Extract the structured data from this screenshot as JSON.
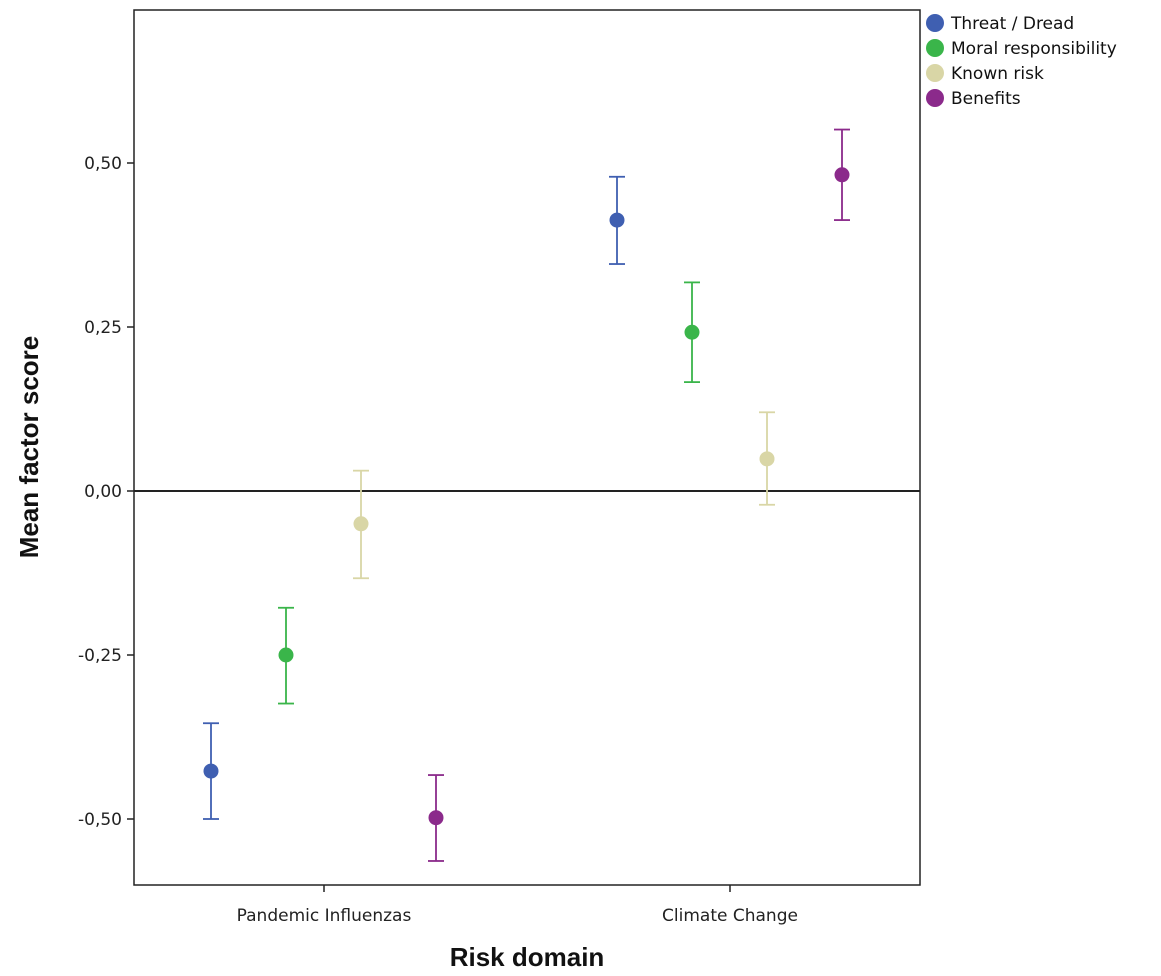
{
  "chart_data": {
    "type": "scatter",
    "title": "",
    "xlabel": "Risk domain",
    "ylabel": "Mean factor score",
    "categories": [
      "Pandemic Influenzas",
      "Climate Change"
    ],
    "yticks": [
      0.5,
      0.25,
      0.0,
      -0.25,
      -0.5
    ],
    "ytick_labels": [
      "0,50",
      "0,25",
      "0,00",
      "-0,25",
      "-0,50"
    ],
    "ylim": [
      -0.6,
      0.73
    ],
    "reference_line_y": 0.0,
    "legend_position": "top-right, outside plot",
    "series": [
      {
        "name": "Threat / Dread",
        "color": "#3f5fb1",
        "values": [
          -0.427,
          0.413
        ],
        "ci_low": [
          -0.5,
          0.346
        ],
        "ci_high": [
          -0.354,
          0.479
        ]
      },
      {
        "name": "Moral responsibility",
        "color": "#3ab54a",
        "values": [
          -0.25,
          0.242
        ],
        "ci_low": [
          -0.324,
          0.166
        ],
        "ci_high": [
          -0.178,
          0.318
        ]
      },
      {
        "name": "Known risk",
        "color": "#d9d6a6",
        "values": [
          -0.05,
          0.049
        ],
        "ci_low": [
          -0.133,
          -0.021
        ],
        "ci_high": [
          0.031,
          0.12
        ]
      },
      {
        "name": "Benefits",
        "color": "#8b2a8b",
        "values": [
          -0.498,
          0.482
        ],
        "ci_low": [
          -0.564,
          0.413
        ],
        "ci_high": [
          -0.433,
          0.551
        ]
      }
    ]
  }
}
